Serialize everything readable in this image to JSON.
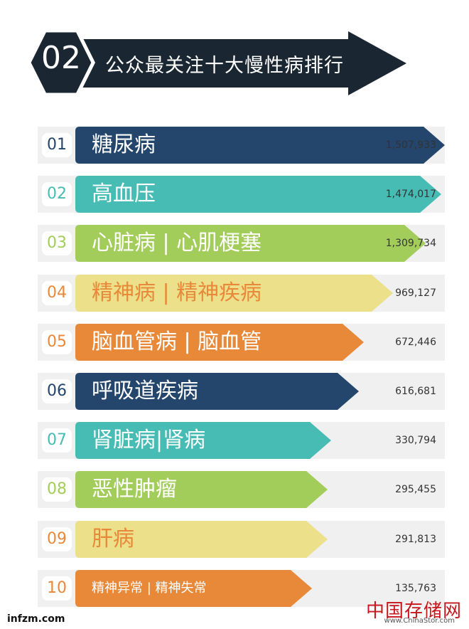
{
  "header": {
    "number": "02",
    "title": "公众最关注十大慢性病排行"
  },
  "colors": {
    "navy": "#24466c",
    "teal": "#47bcb5",
    "green": "#a3cd5b",
    "yellow": "#ede08a",
    "orange": "#e8893a",
    "header_dark": "#1a2733"
  },
  "chart_data": {
    "type": "bar",
    "orientation": "horizontal",
    "title": "公众最关注十大慢性病排行",
    "rows": [
      {
        "rank": "01",
        "label": "糖尿病",
        "value": 1507933,
        "value_label": "1,507,933",
        "color": "#24466c",
        "rank_color": "#24466c",
        "small": false
      },
      {
        "rank": "02",
        "label": "高血压",
        "value": 1474017,
        "value_label": "1,474,017",
        "color": "#47bcb5",
        "rank_color": "#47bcb5",
        "small": false
      },
      {
        "rank": "03",
        "label": "心脏病 | 心肌梗塞",
        "value": 1309734,
        "value_label": "1,309,734",
        "color": "#a3cd5b",
        "rank_color": "#a3cd5b",
        "small": false
      },
      {
        "rank": "04",
        "label": "精神病 | 精神疾病",
        "value": 969127,
        "value_label": "969,127",
        "color": "#ede08a",
        "rank_color": "#e8893a",
        "text_color": "#e8893a",
        "small": false
      },
      {
        "rank": "05",
        "label": "脑血管病 | 脑血管",
        "value": 672446,
        "value_label": "672,446",
        "color": "#e8893a",
        "rank_color": "#e8893a",
        "small": false
      },
      {
        "rank": "06",
        "label": "呼吸道疾病",
        "value": 616681,
        "value_label": "616,681",
        "color": "#24466c",
        "rank_color": "#24466c",
        "small": false
      },
      {
        "rank": "07",
        "label": "肾脏病|肾病",
        "value": 330794,
        "value_label": "330,794",
        "color": "#47bcb5",
        "rank_color": "#47bcb5",
        "small": false
      },
      {
        "rank": "08",
        "label": "恶性肿瘤",
        "value": 295455,
        "value_label": "295,455",
        "color": "#a3cd5b",
        "rank_color": "#a3cd5b",
        "small": false
      },
      {
        "rank": "09",
        "label": "肝病",
        "value": 291813,
        "value_label": "291,813",
        "color": "#ede08a",
        "rank_color": "#e8893a",
        "text_color": "#e8893a",
        "small": false
      },
      {
        "rank": "10",
        "label": "精神异常 | 精神失常",
        "value": 135763,
        "value_label": "135,763",
        "color": "#e8893a",
        "rank_color": "#e8893a",
        "small": true
      }
    ]
  },
  "watermarks": {
    "left": "infzm.com",
    "right_cn": "中国存储网",
    "right_en": "www.ChinaStor.com"
  }
}
